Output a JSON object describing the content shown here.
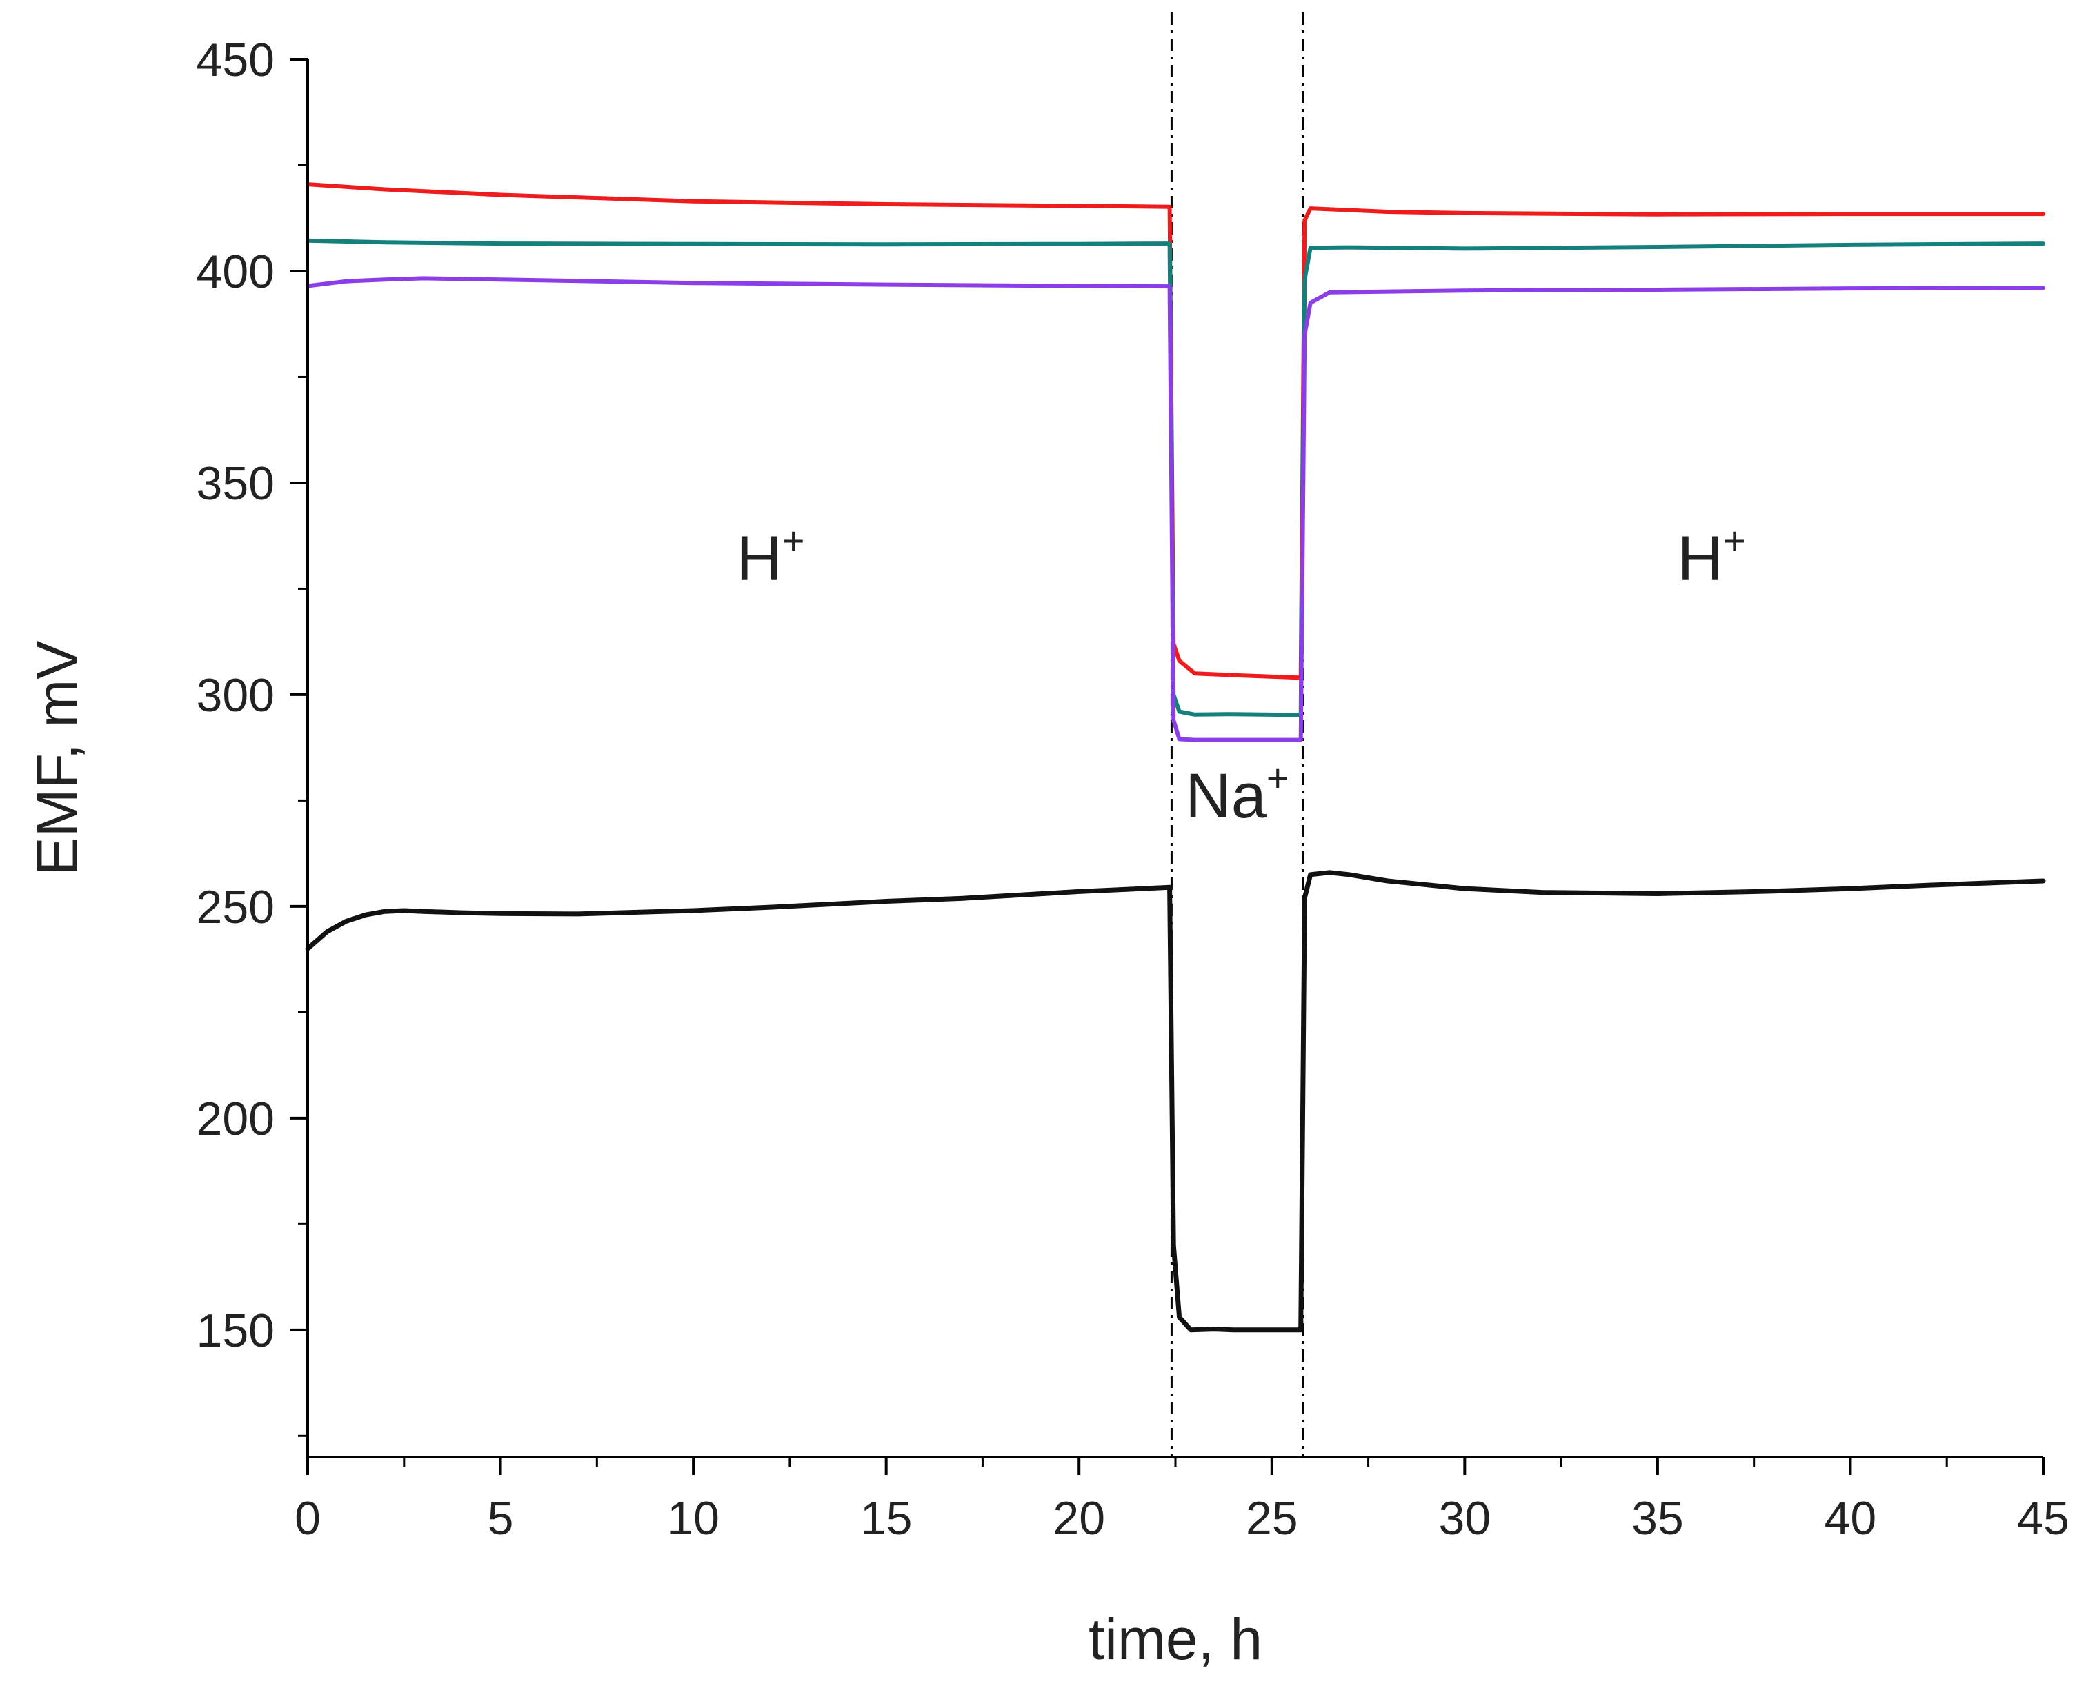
{
  "chart_data": {
    "type": "line",
    "title": "",
    "xlabel": "time, h",
    "ylabel": "EMF, mV",
    "xlim": [
      0,
      45
    ],
    "ylim": [
      120,
      450
    ],
    "x_ticks": [
      0,
      5,
      10,
      15,
      20,
      25,
      30,
      35,
      40,
      45
    ],
    "y_ticks": [
      150,
      200,
      250,
      300,
      350,
      400,
      450
    ],
    "grid": false,
    "legend": "none",
    "phase_boundaries": [
      22.4,
      25.8
    ],
    "annotations": [
      {
        "base": "H",
        "sup": "+",
        "x": 12,
        "y": 327
      },
      {
        "base": "Na",
        "sup": "+",
        "x": 24.1,
        "y": 271
      },
      {
        "base": "H",
        "sup": "+",
        "x": 36.4,
        "y": 327
      }
    ],
    "series": [
      {
        "name": "red",
        "color": "#ee1c1c",
        "x": [
          0,
          2,
          5,
          10,
          15,
          20,
          22.35,
          22.45,
          22.6,
          23,
          24,
          25.75,
          25.85,
          26,
          28,
          30,
          35,
          40,
          45
        ],
        "y": [
          420.5,
          419.3,
          418,
          416.5,
          415.8,
          415.4,
          415.2,
          312,
          308,
          305,
          304.6,
          304,
          412,
          414.8,
          414,
          413.7,
          413.4,
          413.5,
          413.5
        ]
      },
      {
        "name": "teal",
        "color": "#15807b",
        "x": [
          0,
          2,
          5,
          10,
          15,
          20,
          22.35,
          22.45,
          22.6,
          23,
          24,
          25.75,
          25.85,
          26,
          27,
          30,
          35,
          40,
          45
        ],
        "y": [
          407.2,
          406.8,
          406.5,
          406.4,
          406.3,
          406.4,
          406.5,
          300,
          296,
          295.3,
          295.4,
          295.2,
          398,
          405.5,
          405.6,
          405.3,
          405.7,
          406.2,
          406.5
        ]
      },
      {
        "name": "purple",
        "color": "#8b3ee8",
        "x": [
          0,
          1,
          2,
          3,
          5,
          10,
          15,
          20,
          22.35,
          22.45,
          22.6,
          23,
          25.75,
          25.85,
          26,
          26.5,
          30,
          35,
          40,
          45
        ],
        "y": [
          396.5,
          397.6,
          398,
          398.3,
          398,
          397.2,
          396.8,
          396.5,
          396.4,
          294,
          289.5,
          289.3,
          289.3,
          385,
          392.5,
          395,
          395.4,
          395.6,
          395.9,
          396
        ]
      },
      {
        "name": "black",
        "color": "#111111",
        "x": [
          0,
          0.5,
          1,
          1.5,
          2,
          2.5,
          3,
          4,
          5,
          7,
          10,
          12,
          15,
          17,
          20,
          22.35,
          22.45,
          22.6,
          22.9,
          23.5,
          24,
          25.75,
          25.85,
          26,
          26.5,
          27,
          28,
          30,
          32,
          35,
          38,
          40,
          42,
          45
        ],
        "y": [
          240,
          244,
          246.5,
          248,
          248.8,
          249,
          248.8,
          248.5,
          248.3,
          248.2,
          249,
          249.8,
          251.2,
          251.9,
          253.5,
          254.5,
          170,
          153,
          150,
          150.2,
          150,
          150,
          252,
          257.5,
          258,
          257.5,
          256,
          254.2,
          253.3,
          253,
          253.6,
          254.2,
          255,
          256
        ]
      }
    ]
  }
}
